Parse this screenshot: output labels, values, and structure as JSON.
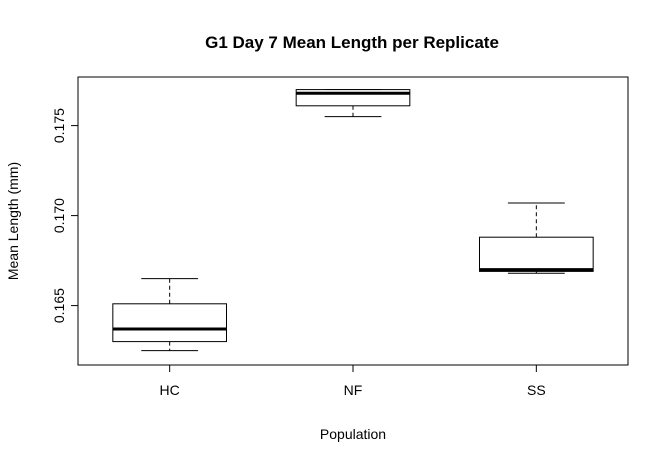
{
  "chart_data": {
    "type": "boxplot",
    "title": "G1 Day 7 Mean Length per Replicate",
    "xlabel": "Population",
    "ylabel": "Mean Length (mm)",
    "ylim": [
      0.1617,
      0.1777
    ],
    "yticks": [
      "0.165",
      "0.170",
      "0.175"
    ],
    "ytick_values": [
      0.165,
      0.17,
      0.175
    ],
    "grid": false,
    "categories": [
      "HC",
      "NF",
      "SS"
    ],
    "boxes": [
      {
        "category": "HC",
        "whisker_low": 0.1625,
        "q1": 0.163,
        "median": 0.1637,
        "q3": 0.1651,
        "whisker_high": 0.1665
      },
      {
        "category": "NF",
        "whisker_low": 0.1755,
        "q1": 0.1761,
        "median": 0.1768,
        "q3": 0.177,
        "whisker_high": 0.177
      },
      {
        "category": "SS",
        "whisker_low": 0.1668,
        "q1": 0.1669,
        "median": 0.167,
        "q3": 0.1688,
        "whisker_high": 0.1707
      }
    ]
  }
}
